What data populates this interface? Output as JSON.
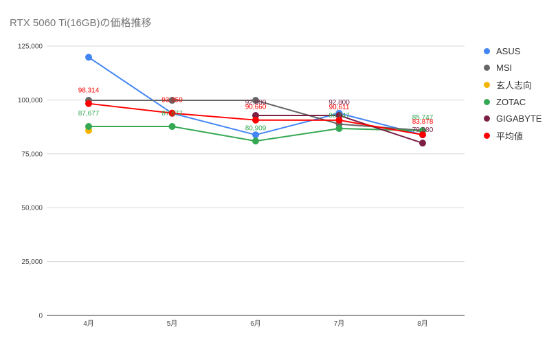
{
  "chart_data": {
    "type": "line",
    "title": "RTX 5060 Ti(16GB)の価格推移",
    "categories": [
      "4月",
      "5月",
      "6月",
      "7月",
      "8月"
    ],
    "ylim": [
      0,
      125000
    ],
    "yticks": [
      0,
      25000,
      50000,
      75000,
      100000,
      125000
    ],
    "ytick_labels": [
      "0",
      "25,000",
      "50,000",
      "75,000",
      "100,000",
      "125,000"
    ],
    "grid": true,
    "legend_position": "right",
    "series": [
      {
        "name": "ASUS",
        "color": "#4285f4",
        "values": [
          119800,
          93800,
          83800,
          93800,
          83800
        ],
        "labels": [
          null,
          null,
          null,
          null,
          null
        ]
      },
      {
        "name": "MSI",
        "color": "#666666",
        "values": [
          99800,
          99800,
          99800,
          88800,
          85800
        ],
        "labels": [
          null,
          null,
          null,
          null,
          null
        ]
      },
      {
        "name": "玄人志向",
        "color": "#f4b400",
        "values": [
          85800,
          null,
          null,
          null,
          null
        ],
        "labels": [
          null,
          null,
          null,
          null,
          null
        ]
      },
      {
        "name": "ZOTAC",
        "color": "#34a853",
        "values": [
          87677,
          87677,
          80909,
          86747,
          85747
        ],
        "labels": [
          "87,677",
          "87,677",
          "80,909",
          "86,747",
          "85,747"
        ]
      },
      {
        "name": "GIGABYTE",
        "color": "#7b1f45",
        "values": [
          null,
          null,
          92800,
          92800,
          79980
        ],
        "labels": [
          null,
          null,
          "92,800",
          "92,800",
          "79,980"
        ]
      },
      {
        "name": "平均値",
        "color": "#ff0000",
        "values": [
          98314,
          93859,
          90660,
          90611,
          83878
        ],
        "labels": [
          "98,314",
          "93,859",
          "90,660",
          "90,611",
          "83,878"
        ]
      }
    ]
  }
}
